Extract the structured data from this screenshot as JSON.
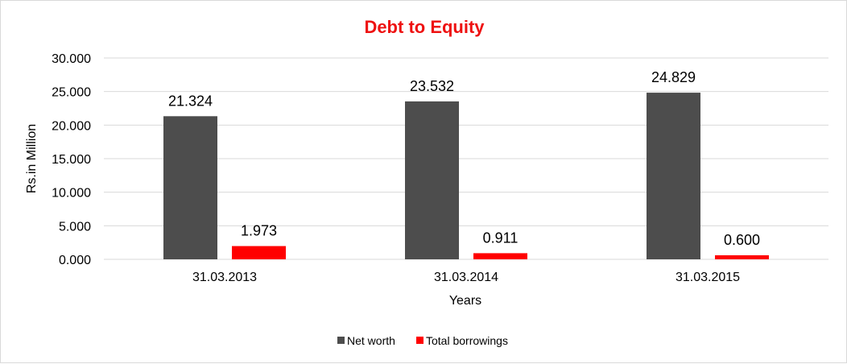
{
  "colors": {
    "title": "#ee1111",
    "net_worth": "#4d4d4d",
    "total_borrowings": "#ff0000",
    "grid": "#d9d9d9"
  },
  "chart_data": {
    "type": "bar",
    "title": "Debt to Equity",
    "xlabel": "Years",
    "ylabel": "Rs.in Million",
    "ylim": [
      0,
      30
    ],
    "yticks": [
      "0.000",
      "5.000",
      "10.000",
      "15.000",
      "20.000",
      "25.000",
      "30.000"
    ],
    "categories": [
      "31.03.2013",
      "31.03.2014",
      "31.03.2015"
    ],
    "series": [
      {
        "name": "Net worth",
        "values": [
          21.324,
          23.532,
          24.829
        ],
        "labels": [
          "21.324",
          "23.532",
          "24.829"
        ]
      },
      {
        "name": "Total borrowings",
        "values": [
          1.973,
          0.911,
          0.6
        ],
        "labels": [
          "1.973",
          "0.911",
          "0.600"
        ]
      }
    ],
    "grid": true,
    "legend": "bottom"
  }
}
